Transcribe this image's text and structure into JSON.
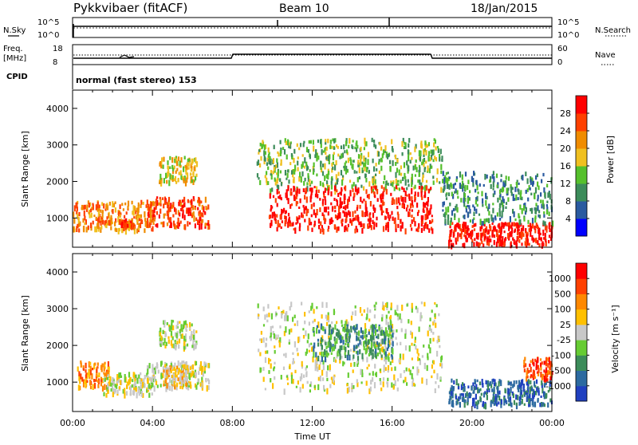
{
  "header": {
    "station": "Pykkvibaer (fitACF)",
    "beam": "Beam 10",
    "date": "18/Jan/2015"
  },
  "strips": {
    "nsky_label": "N.Sky",
    "nsky_ticks": [
      "10^5",
      "10^0"
    ],
    "nsearch_label": "N.Search",
    "nsearch_ticks": [
      "10^5",
      "10^0"
    ],
    "freq_label_line1": "Freq.",
    "freq_label_line2": "[MHz]",
    "freq_ticks": [
      "18",
      "8"
    ],
    "nave_label": "Nave",
    "nave_ticks": [
      "60",
      "0"
    ],
    "cpid_label": "CPID",
    "cpid_text": "normal (fast stereo) 153"
  },
  "chart_data": [
    {
      "type": "heatmap",
      "panel": "power",
      "ylabel": "Slant Range [km]",
      "ylim": [
        200,
        4500
      ],
      "yticks": [
        "4000",
        "3000",
        "2000",
        "1000"
      ],
      "xlim": [
        "00:00",
        "24:00"
      ],
      "colorbar_label": "Power [dB]",
      "colorbar_ticks": [
        "28",
        "24",
        "20",
        "16",
        "12",
        "8",
        "4"
      ],
      "colors": [
        "#0000ff",
        "#2a5aa0",
        "#3c8c5a",
        "#55c02c",
        "#f0c020",
        "#f08c00",
        "#ff4000",
        "#ff0000"
      ],
      "blobs": [
        {
          "t0": 0.0,
          "t1": 4.0,
          "r0": 700,
          "r1": 1500,
          "level": 5
        },
        {
          "t0": 2.3,
          "t1": 3.0,
          "r0": 800,
          "r1": 1000,
          "level": 6
        },
        {
          "t0": 3.7,
          "t1": 6.8,
          "r0": 800,
          "r1": 1600,
          "level": 6
        },
        {
          "t0": 4.3,
          "t1": 6.2,
          "r0": 2000,
          "r1": 2700,
          "level": 4
        },
        {
          "t0": 9.2,
          "t1": 18.5,
          "r0": 1800,
          "r1": 3200,
          "level": 3
        },
        {
          "t0": 9.8,
          "t1": 18.0,
          "r0": 700,
          "r1": 1900,
          "level": 7
        },
        {
          "t0": 18.8,
          "t1": 24.0,
          "r0": 300,
          "r1": 900,
          "level": 7
        },
        {
          "t0": 18.5,
          "t1": 24.0,
          "r0": 900,
          "r1": 2300,
          "level": 2
        }
      ]
    },
    {
      "type": "heatmap",
      "panel": "velocity",
      "ylabel": "Slant Range [km]",
      "ylim": [
        200,
        4500
      ],
      "yticks": [
        "4000",
        "3000",
        "2000",
        "1000"
      ],
      "xlim": [
        "00:00",
        "24:00"
      ],
      "xticks": [
        "00:00",
        "04:00",
        "08:00",
        "12:00",
        "16:00",
        "20:00",
        "00:00"
      ],
      "xlabel": "Time UT",
      "colorbar_label": "Velocity [m s⁻¹]",
      "colorbar_ticks": [
        "1000",
        "500",
        "100",
        "25",
        "-25",
        "-100",
        "-500",
        "-1000"
      ],
      "colors": [
        "#2040c0",
        "#2c6aa0",
        "#3c8c5a",
        "#66cc33",
        "#c8c8c8",
        "#ffc000",
        "#ff8800",
        "#ff4000",
        "#ff0000"
      ],
      "blobs": [
        {
          "t0": 0.2,
          "t1": 1.8,
          "r0": 900,
          "r1": 1600,
          "level": 6
        },
        {
          "t0": 1.5,
          "t1": 4.0,
          "r0": 700,
          "r1": 1300,
          "level": 4
        },
        {
          "t0": 3.7,
          "t1": 6.8,
          "r0": 900,
          "r1": 1600,
          "level": 4
        },
        {
          "t0": 4.5,
          "t1": 6.0,
          "r0": 900,
          "r1": 1500,
          "level": 5
        },
        {
          "t0": 4.3,
          "t1": 6.2,
          "r0": 2000,
          "r1": 2700,
          "level": 4
        },
        {
          "t0": 9.2,
          "t1": 18.5,
          "r0": 800,
          "r1": 3200,
          "level": 4
        },
        {
          "t0": 12.0,
          "t1": 16.0,
          "r0": 1700,
          "r1": 2600,
          "level": 2
        },
        {
          "t0": 18.8,
          "t1": 24.0,
          "r0": 400,
          "r1": 1100,
          "level": 1
        },
        {
          "t0": 22.5,
          "t1": 24.0,
          "r0": 1100,
          "r1": 1700,
          "level": 7
        }
      ]
    }
  ]
}
